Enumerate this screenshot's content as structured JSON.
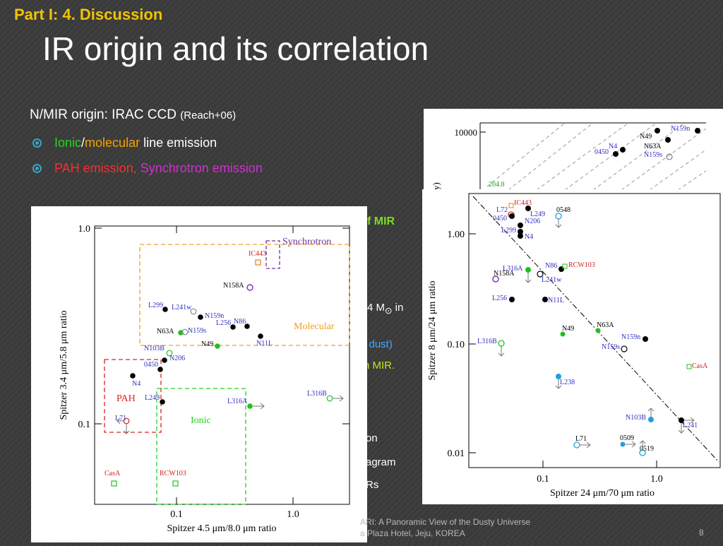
{
  "slide": {
    "part_title": "Part I: 4. Discussion",
    "title": "IR origin and its correlation",
    "origin_heading": "N/MIR origin: IRAC CCD",
    "origin_ref": "(Reach+06)",
    "bullets": [
      {
        "parts": [
          "Ionic",
          "/",
          "molecular",
          " line emission"
        ]
      },
      {
        "parts": [
          "PAH emission, ",
          "Synchrotron emission"
        ]
      }
    ],
    "hidden_fragments": [
      "f MIR",
      "4 M",
      "⊙",
      " in",
      "l dust)",
      "n MIR.",
      "on",
      "agram",
      "Rs"
    ],
    "colors": {
      "accent_title": "#f2c400",
      "ionic": "#22d422",
      "molecular": "#f2a300",
      "pah": "#ff2a2a",
      "synchrotron": "#d030d0"
    }
  },
  "footer": {
    "line1": "ARI: A Panoramic View of the Dusty Universe",
    "line2": "a Plaza Hotel, Jeju, KOREA",
    "page": "8"
  },
  "plot_left": {
    "xlabel": "Spitzer 4.5 μm/8.0 μm ratio",
    "ylabel": "Spitzer 3.4 μm/5.8 μm ratio",
    "xticks": [
      "0.1",
      "1.0"
    ],
    "yticks": [
      "1.0",
      "0.1"
    ],
    "regions": [
      "Synchrotron",
      "Molecular",
      "PAH",
      "Ionic"
    ],
    "points": [
      {
        "label": "IC443",
        "color": "red"
      },
      {
        "label": "N158A"
      },
      {
        "label": "L299"
      },
      {
        "label": "L241w"
      },
      {
        "label": "N159n"
      },
      {
        "label": "L256"
      },
      {
        "label": "N86"
      },
      {
        "label": "N63A"
      },
      {
        "label": "N159s"
      },
      {
        "label": "N11L"
      },
      {
        "label": "N49"
      },
      {
        "label": "N103B"
      },
      {
        "label": "N206"
      },
      {
        "label": "0450"
      },
      {
        "label": "N4"
      },
      {
        "label": "L249"
      },
      {
        "label": "L316A"
      },
      {
        "label": "L316B"
      },
      {
        "label": "L71"
      },
      {
        "label": "CasA"
      },
      {
        "label": "RCW103"
      }
    ]
  },
  "plot_right_top": {
    "ytick": "10000",
    "ylabel_fragment": "Jy)",
    "labels": [
      "N159n",
      "N49",
      "N63A",
      "N4",
      "0450",
      "N159s",
      "204.8"
    ]
  },
  "plot_right": {
    "xlabel": "Spitzer 24 μm/70 μm ratio",
    "ylabel": "Spitzer 8 μm/24 μm ratio",
    "xticks": [
      "0.1",
      "1.0"
    ],
    "yticks": [
      "1.00",
      "0.10",
      "0.01"
    ],
    "labels": [
      "IC443",
      "L72",
      "0450",
      "L299",
      "L249",
      "N206",
      "N4",
      "0548",
      "N86",
      "RCW103",
      "L316A",
      "N158A",
      "L241w",
      "L256",
      "N11L",
      "N63A",
      "N49",
      "N159n",
      "N159s",
      "L316B",
      "CasA",
      "L238",
      "N103B",
      "L241",
      "L71",
      "0509",
      "0519"
    ]
  }
}
